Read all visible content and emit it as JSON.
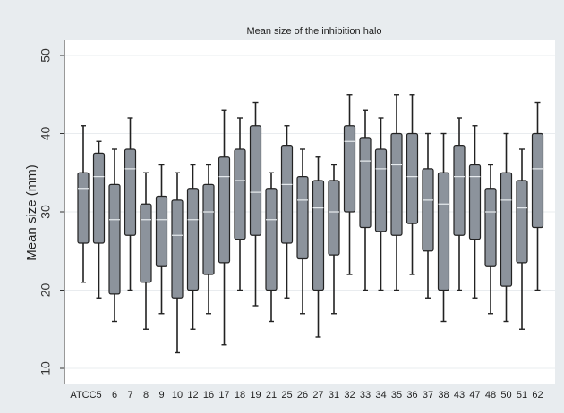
{
  "chart_data": {
    "type": "boxplot",
    "title": "Mean size of the inhibition halo",
    "ylabel": "Mean size  (mm)",
    "xlabel": "",
    "ylim": [
      10,
      50
    ],
    "yticks": [
      10,
      20,
      30,
      40,
      50
    ],
    "grid": true,
    "colors": {
      "box": "#8c939c",
      "line": "#222222",
      "grid": "#e9ecef",
      "bg": "#ffffff",
      "outer": "#e8ecef"
    },
    "categories": [
      "ATCC",
      "5",
      "6",
      "7",
      "8",
      "9",
      "10",
      "12",
      "16",
      "17",
      "18",
      "19",
      "21",
      "25",
      "26",
      "27",
      "31",
      "32",
      "33",
      "34",
      "35",
      "36",
      "37",
      "38",
      "43",
      "47",
      "48",
      "50",
      "51",
      "62"
    ],
    "boxes": [
      {
        "min": 21,
        "q1": 26,
        "median": 33,
        "q3": 35,
        "max": 41
      },
      {
        "min": 19,
        "q1": 26,
        "median": 34.5,
        "q3": 37.5,
        "max": 39
      },
      {
        "min": 16,
        "q1": 19.5,
        "median": 29,
        "q3": 33.5,
        "max": 38
      },
      {
        "min": 20,
        "q1": 27,
        "median": 35.5,
        "q3": 38,
        "max": 42
      },
      {
        "min": 15,
        "q1": 21,
        "median": 29,
        "q3": 31,
        "max": 35
      },
      {
        "min": 17,
        "q1": 23,
        "median": 29,
        "q3": 32,
        "max": 36
      },
      {
        "min": 12,
        "q1": 19,
        "median": 27,
        "q3": 31.5,
        "max": 35
      },
      {
        "min": 15,
        "q1": 20,
        "median": 29,
        "q3": 33,
        "max": 36
      },
      {
        "min": 17,
        "q1": 22,
        "median": 30,
        "q3": 33.5,
        "max": 36
      },
      {
        "min": 13,
        "q1": 23.5,
        "median": 34.5,
        "q3": 37,
        "max": 43
      },
      {
        "min": 20,
        "q1": 26.5,
        "median": 34,
        "q3": 38,
        "max": 42
      },
      {
        "min": 18,
        "q1": 27,
        "median": 32.5,
        "q3": 41,
        "max": 44
      },
      {
        "min": 16,
        "q1": 20,
        "median": 29,
        "q3": 33,
        "max": 35
      },
      {
        "min": 19,
        "q1": 26,
        "median": 33.5,
        "q3": 38.5,
        "max": 41
      },
      {
        "min": 17,
        "q1": 24,
        "median": 31.5,
        "q3": 34.5,
        "max": 38
      },
      {
        "min": 14,
        "q1": 20,
        "median": 30.5,
        "q3": 34,
        "max": 37
      },
      {
        "min": 17,
        "q1": 24.5,
        "median": 30,
        "q3": 34,
        "max": 36
      },
      {
        "min": 22,
        "q1": 30,
        "median": 39,
        "q3": 41,
        "max": 45
      },
      {
        "min": 20,
        "q1": 28,
        "median": 36.5,
        "q3": 39.5,
        "max": 43
      },
      {
        "min": 20,
        "q1": 27.5,
        "median": 35.5,
        "q3": 38,
        "max": 42
      },
      {
        "min": 20,
        "q1": 27,
        "median": 36,
        "q3": 40,
        "max": 45
      },
      {
        "min": 22,
        "q1": 28.5,
        "median": 34.5,
        "q3": 40,
        "max": 45
      },
      {
        "min": 19,
        "q1": 25,
        "median": 31.5,
        "q3": 35.5,
        "max": 40
      },
      {
        "min": 16,
        "q1": 20,
        "median": 31,
        "q3": 35,
        "max": 40
      },
      {
        "min": 20,
        "q1": 27,
        "median": 34.5,
        "q3": 38.5,
        "max": 42
      },
      {
        "min": 19,
        "q1": 26.5,
        "median": 34.5,
        "q3": 36,
        "max": 41
      },
      {
        "min": 17,
        "q1": 23,
        "median": 30,
        "q3": 33,
        "max": 36
      },
      {
        "min": 16,
        "q1": 20.5,
        "median": 31.5,
        "q3": 35,
        "max": 40
      },
      {
        "min": 15,
        "q1": 23.5,
        "median": 30.5,
        "q3": 34,
        "max": 38
      },
      {
        "min": 20,
        "q1": 28,
        "median": 35.5,
        "q3": 40,
        "max": 44
      }
    ]
  }
}
